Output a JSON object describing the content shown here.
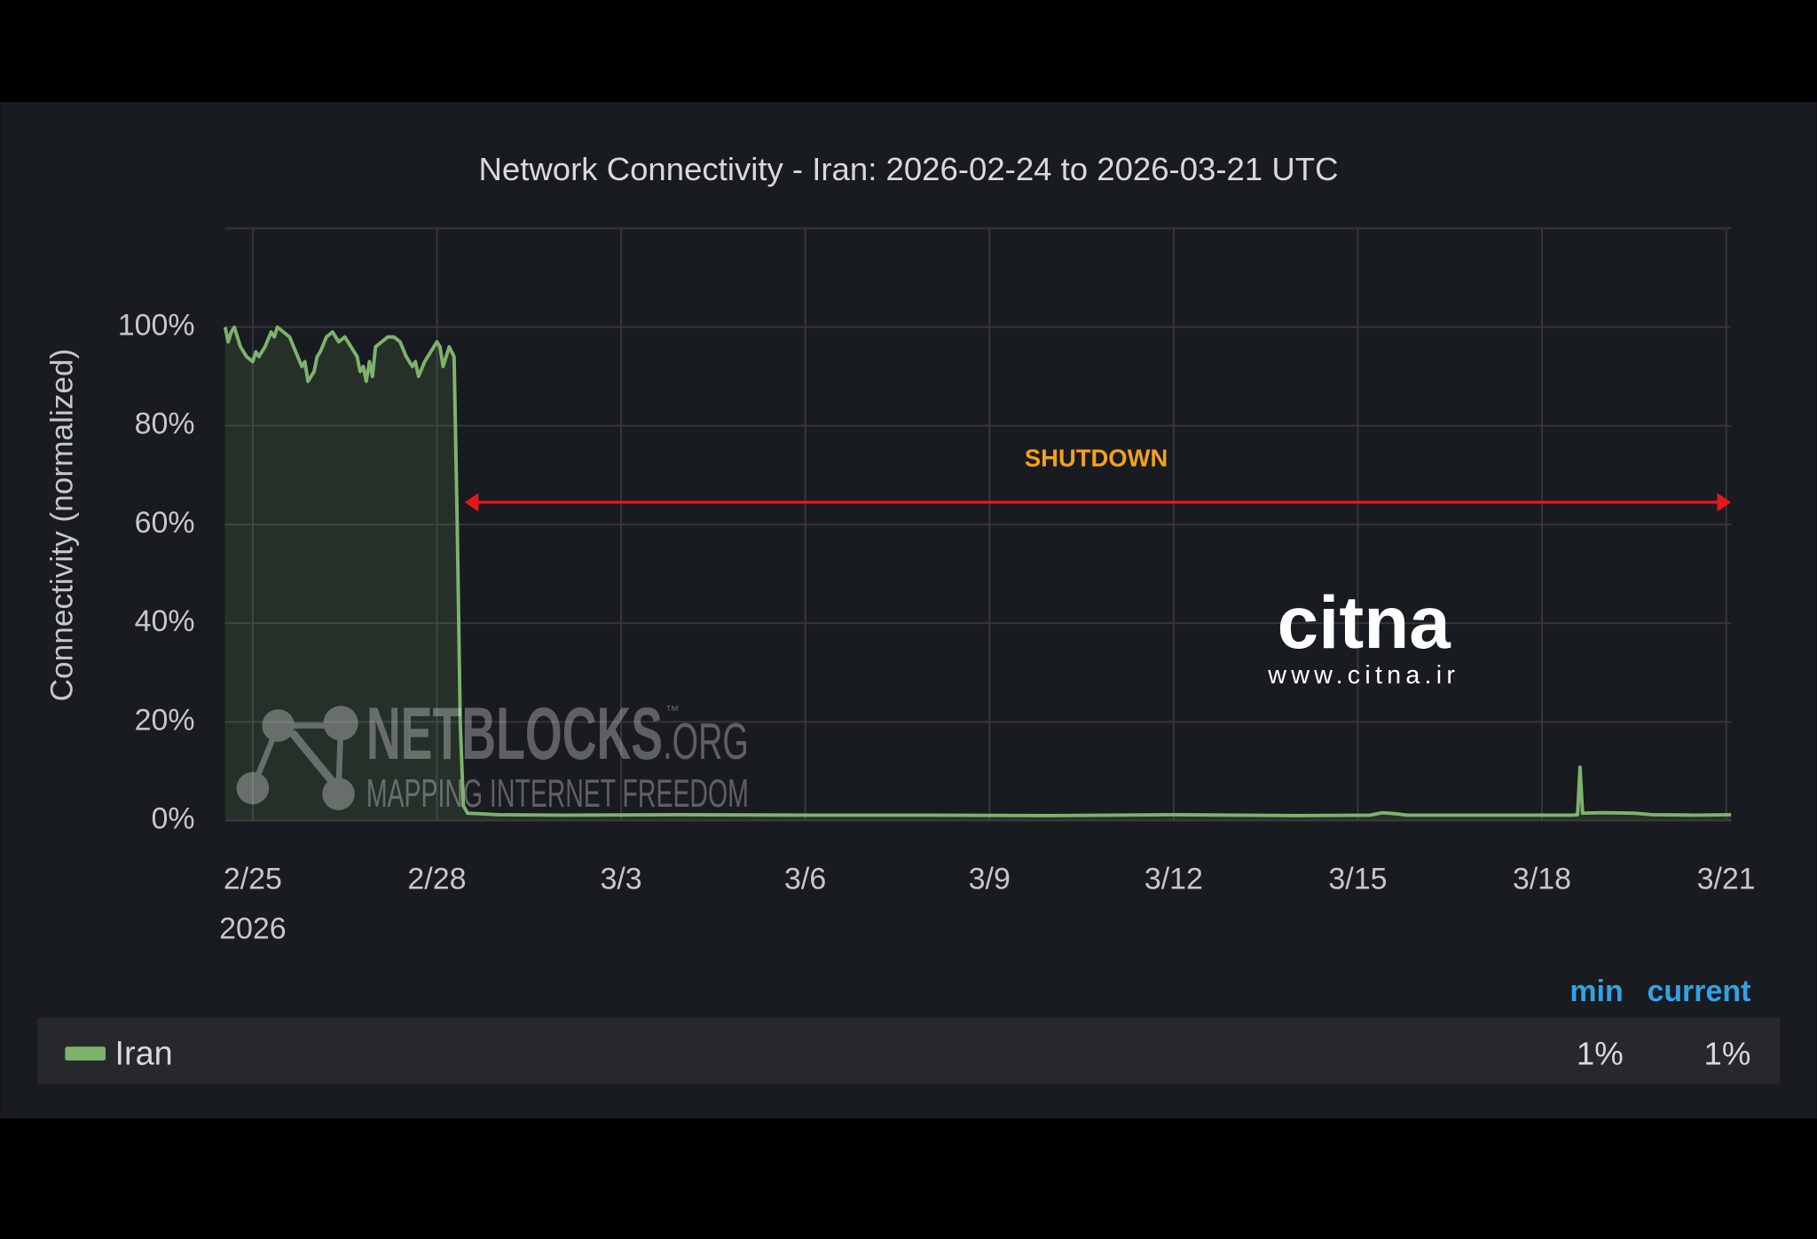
{
  "chart_data": {
    "type": "area",
    "title": "Network Connectivity - Iran: 2026-02-24 to 2026-03-21 UTC",
    "y_label": "Connectivity (normalized)",
    "x_year_label": "2026",
    "xlim": [
      0.547,
      25.08
    ],
    "xticks": [
      {
        "value": 1,
        "label": "2/25"
      },
      {
        "value": 4,
        "label": "2/28"
      },
      {
        "value": 7,
        "label": "3/3"
      },
      {
        "value": 10,
        "label": "3/6"
      },
      {
        "value": 13,
        "label": "3/9"
      },
      {
        "value": 16,
        "label": "3/12"
      },
      {
        "value": 19,
        "label": "3/15"
      },
      {
        "value": 22,
        "label": "3/18"
      },
      {
        "value": 25,
        "label": "3/21"
      }
    ],
    "ylim": [
      0,
      120
    ],
    "yticks": [
      {
        "value": 0,
        "label": "0%"
      },
      {
        "value": 20,
        "label": "20%"
      },
      {
        "value": 40,
        "label": "40%"
      },
      {
        "value": 60,
        "label": "60%"
      },
      {
        "value": 80,
        "label": "80%"
      },
      {
        "value": 100,
        "label": "100%"
      }
    ],
    "grid": true,
    "x": [
      0.55,
      0.6,
      0.65,
      0.7,
      0.8,
      0.9,
      1.0,
      1.05,
      1.1,
      1.2,
      1.3,
      1.35,
      1.4,
      1.5,
      1.6,
      1.7,
      1.8,
      1.85,
      1.9,
      2.0,
      2.05,
      2.1,
      2.2,
      2.3,
      2.4,
      2.5,
      2.6,
      2.7,
      2.75,
      2.8,
      2.85,
      2.9,
      2.95,
      3.0,
      3.1,
      3.2,
      3.3,
      3.4,
      3.5,
      3.6,
      3.65,
      3.7,
      3.8,
      3.9,
      4.0,
      4.05,
      4.1,
      4.2,
      4.28,
      4.33,
      4.38,
      4.43,
      4.5,
      5,
      6,
      8,
      10,
      12,
      14,
      16,
      18,
      19.2,
      19.4,
      19.6,
      19.8,
      21,
      22.5,
      22.58,
      22.62,
      22.66,
      23,
      23.5,
      23.8,
      24.5,
      25.08
    ],
    "series": [
      {
        "name": "Iran",
        "color": "#7eb26d",
        "values": [
          100,
          97,
          99,
          100,
          96,
          94,
          93,
          95,
          94,
          96,
          99,
          98,
          100,
          99,
          98,
          95,
          92,
          93,
          89,
          91,
          94,
          95,
          98,
          99,
          97,
          98,
          96,
          94,
          91,
          92,
          89,
          93,
          90,
          96,
          97,
          98,
          98,
          97,
          94,
          92,
          93,
          90,
          93,
          95,
          97,
          96,
          92,
          96,
          94,
          60,
          20,
          3,
          1.5,
          1.2,
          1.1,
          1.2,
          1.1,
          1.1,
          1.0,
          1.2,
          1.0,
          1.1,
          1.6,
          1.4,
          1.1,
          1.1,
          1.1,
          1.2,
          10.8,
          1.5,
          1.6,
          1.5,
          1.2,
          1.1,
          1.2
        ]
      }
    ],
    "annotation": {
      "text": "SHUTDOWN",
      "x": [
        4.45,
        25.08
      ],
      "y": 64.5,
      "color": "#e8161b",
      "text_color": "#f2a21b"
    },
    "legend_stats": {
      "headers": [
        "min",
        "current"
      ],
      "values": [
        "1%",
        "1%"
      ]
    },
    "watermarks": {
      "netblocks": "NETBLOCKS",
      "org": ".ORG",
      "tm": "™",
      "tagline": "MAPPING INTERNET FREEDOM",
      "citna": "citna",
      "citna_url": "www.citna.ir"
    }
  }
}
